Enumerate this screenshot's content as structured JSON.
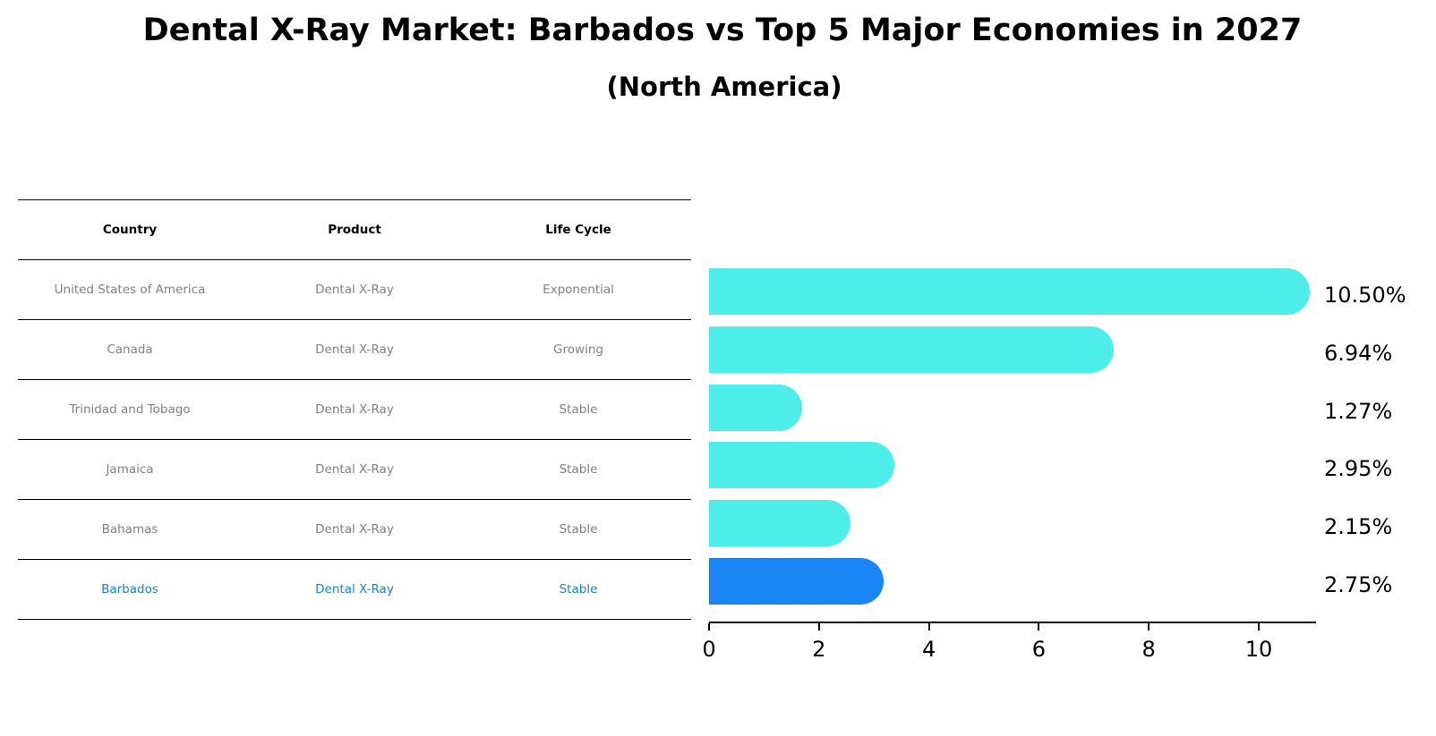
{
  "header": {
    "title": "Dental X-Ray Market: Barbados vs Top 5 Major Economies in 2027",
    "subtitle": "(North America)"
  },
  "table": {
    "columns": [
      "Country",
      "Product",
      "Life Cycle"
    ],
    "rows": [
      [
        "United States of America",
        "Dental X-Ray",
        "Exponential"
      ],
      [
        "Canada",
        "Dental X-Ray",
        "Growing"
      ],
      [
        "Trinidad and Tobago",
        "Dental X-Ray",
        "Stable"
      ],
      [
        "Jamaica",
        "Dental X-Ray",
        "Stable"
      ],
      [
        "Bahamas",
        "Dental X-Ray",
        "Stable"
      ],
      [
        "Barbados",
        "Dental X-Ray",
        "Stable"
      ]
    ],
    "highlight_row": 5
  },
  "colors": {
    "bar": "#4deeea",
    "highlight_bar": "#1a85f5",
    "muted_text": "#808080",
    "highlight_text": "#1a85c8"
  },
  "chart_data": {
    "type": "bar",
    "orientation": "horizontal",
    "title": "Dental X-Ray Market: Barbados vs Top 5 Major Economies in 2027",
    "subtitle": "(North America)",
    "categories": [
      "United States of America",
      "Canada",
      "Trinidad and Tobago",
      "Jamaica",
      "Bahamas",
      "Barbados"
    ],
    "values": [
      10.5,
      6.94,
      1.27,
      2.95,
      2.15,
      2.75
    ],
    "value_labels": [
      "10.50%",
      "6.94%",
      "1.27%",
      "2.95%",
      "2.15%",
      "2.75%"
    ],
    "highlight": "Barbados",
    "xlabel": "",
    "ylabel": "",
    "xlim": [
      0,
      11.04
    ],
    "xticks": [
      0,
      2,
      4,
      6,
      8,
      10
    ],
    "grid": false,
    "legend": null
  }
}
